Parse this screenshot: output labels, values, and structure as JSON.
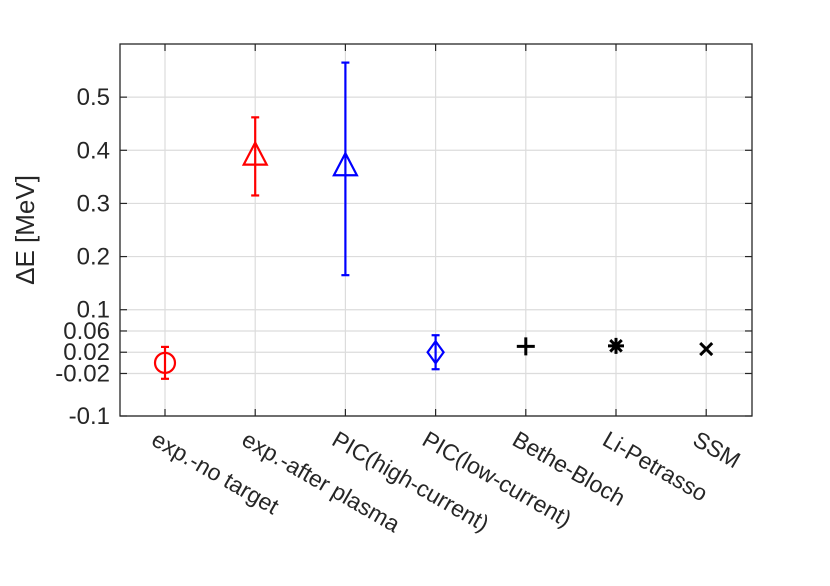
{
  "chart_data": {
    "type": "scatter",
    "title": "",
    "xlabel": "",
    "ylabel": "ΔE [MeV]",
    "ylim": [
      -0.1,
      0.6
    ],
    "yticks": [
      {
        "value": -0.1,
        "label": "-0.1"
      },
      {
        "value": -0.02,
        "label": "-0.02"
      },
      {
        "value": 0.02,
        "label": "0.02"
      },
      {
        "value": 0.06,
        "label": "0.06"
      },
      {
        "value": 0.1,
        "label": "0.1"
      },
      {
        "value": 0.2,
        "label": "0.2"
      },
      {
        "value": 0.3,
        "label": "0.3"
      },
      {
        "value": 0.4,
        "label": "0.4"
      },
      {
        "value": 0.5,
        "label": "0.5"
      }
    ],
    "grid": true,
    "categories": [
      "exp.-no target",
      "exp.-after plasma",
      "PIC(high-current)",
      "PIC(low-current)",
      "Bethe-Bloch",
      "Li-Petrasso",
      "SSM"
    ],
    "points": [
      {
        "category": "exp.-no target",
        "value": 0.0,
        "err_low": -0.03,
        "err_high": 0.03,
        "marker": "circle",
        "color": "#ff0000"
      },
      {
        "category": "exp.-after plasma",
        "value": 0.39,
        "err_low": 0.315,
        "err_high": 0.462,
        "marker": "triangle",
        "color": "#ff0000"
      },
      {
        "category": "PIC(high-current)",
        "value": 0.37,
        "err_low": 0.165,
        "err_high": 0.565,
        "marker": "triangle",
        "color": "#0000ff"
      },
      {
        "category": "PIC(low-current)",
        "value": 0.02,
        "err_low": -0.012,
        "err_high": 0.052,
        "marker": "diamond",
        "color": "#0000ff"
      },
      {
        "category": "Bethe-Bloch",
        "value": 0.031,
        "marker": "plus",
        "color": "#000000"
      },
      {
        "category": "Li-Petrasso",
        "value": 0.032,
        "marker": "asterisk",
        "color": "#000000"
      },
      {
        "category": "SSM",
        "value": 0.026,
        "marker": "cross",
        "color": "#000000"
      }
    ]
  }
}
